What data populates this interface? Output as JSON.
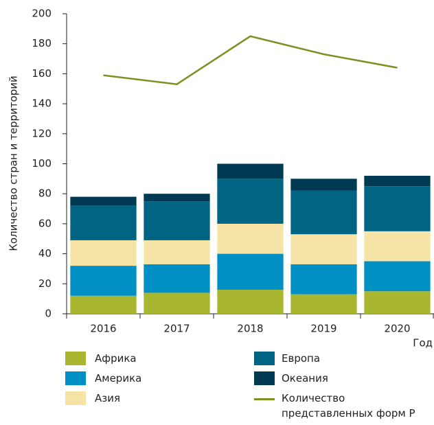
{
  "chart_data": {
    "type": "bar",
    "stacked": true,
    "ylabel": "Количество стран и территорий",
    "xlabel": "Год",
    "categories": [
      "2016",
      "2017",
      "2018",
      "2019",
      "2020"
    ],
    "ylim": [
      0,
      200
    ],
    "yticks": [
      0,
      20,
      40,
      60,
      80,
      100,
      120,
      140,
      160,
      180,
      200
    ],
    "series": [
      {
        "name": "Африка",
        "color": "#a9b630",
        "values": [
          12,
          14,
          16,
          13,
          15
        ]
      },
      {
        "name": "Америка",
        "color": "#0090c4",
        "values": [
          20,
          19,
          24,
          20,
          20
        ]
      },
      {
        "name": "Азия",
        "color": "#f6e4a6",
        "values": [
          17,
          16,
          20,
          20,
          20
        ]
      },
      {
        "name": "Европа",
        "color": "#006482",
        "values": [
          23,
          26,
          30,
          29,
          30
        ]
      },
      {
        "name": "Океания",
        "color": "#003a52",
        "values": [
          6,
          5,
          10,
          8,
          7
        ]
      },
      {
        "name": "Количество представленных форм Р",
        "color": "#7f8f22",
        "type": "line",
        "values": [
          159,
          153,
          185,
          173,
          164
        ]
      }
    ]
  }
}
